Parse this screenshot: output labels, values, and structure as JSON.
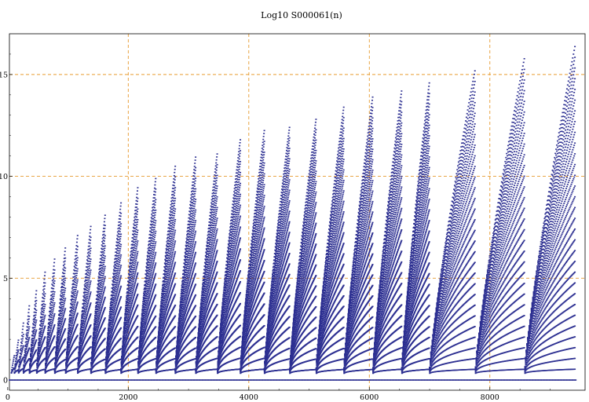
{
  "chart_data": {
    "type": "scatter",
    "title": "Log10 S000061(n)",
    "xlabel": "",
    "ylabel": "",
    "xlim": [
      0,
      9500
    ],
    "ylim": [
      0,
      16.5
    ],
    "xticks": [
      0,
      2000,
      4000,
      6000,
      8000
    ],
    "yticks": [
      0,
      5,
      10,
      15
    ],
    "grid": true,
    "colors": {
      "points": "#2c2f91",
      "grid": "#e69a2e",
      "axis": "#000000"
    },
    "series": [
      {
        "blocks": [
          {
            "n_start": 60,
            "n_end": 110,
            "peak": 1.2
          },
          {
            "n_start": 110,
            "n_end": 180,
            "peak": 2.0
          },
          {
            "n_start": 180,
            "n_end": 260,
            "peak": 2.8
          },
          {
            "n_start": 260,
            "n_end": 360,
            "peak": 3.7
          },
          {
            "n_start": 360,
            "n_end": 480,
            "peak": 4.5
          },
          {
            "n_start": 480,
            "n_end": 620,
            "peak": 5.3
          },
          {
            "n_start": 620,
            "n_end": 780,
            "peak": 6.0
          },
          {
            "n_start": 780,
            "n_end": 960,
            "peak": 6.6
          },
          {
            "n_start": 960,
            "n_end": 1160,
            "peak": 7.1
          },
          {
            "n_start": 1160,
            "n_end": 1380,
            "peak": 7.6
          },
          {
            "n_start": 1380,
            "n_end": 1620,
            "peak": 8.2
          },
          {
            "n_start": 1620,
            "n_end": 1880,
            "peak": 8.7
          },
          {
            "n_start": 1880,
            "n_end": 2160,
            "peak": 9.5
          },
          {
            "n_start": 2160,
            "n_end": 2460,
            "peak": 10.0
          },
          {
            "n_start": 2460,
            "n_end": 2780,
            "peak": 10.5
          },
          {
            "n_start": 2780,
            "n_end": 3120,
            "peak": 11.0
          },
          {
            "n_start": 3120,
            "n_end": 3480,
            "peak": 11.2
          },
          {
            "n_start": 3480,
            "n_end": 3860,
            "peak": 11.8
          },
          {
            "n_start": 3860,
            "n_end": 4260,
            "peak": 12.3
          },
          {
            "n_start": 4260,
            "n_end": 4680,
            "peak": 12.5
          },
          {
            "n_start": 4680,
            "n_end": 5120,
            "peak": 12.9
          },
          {
            "n_start": 5120,
            "n_end": 5580,
            "peak": 13.5
          },
          {
            "n_start": 5580,
            "n_end": 6060,
            "peak": 14.0
          },
          {
            "n_start": 6060,
            "n_end": 6540,
            "peak": 14.3
          },
          {
            "n_start": 6540,
            "n_end": 7000,
            "peak": 14.7
          },
          {
            "n_start": 7000,
            "n_end": 7760,
            "peak": 15.3
          },
          {
            "n_start": 7760,
            "n_end": 8580,
            "peak": 15.9
          },
          {
            "n_start": 8580,
            "n_end": 9420,
            "peak": 16.5
          }
        ],
        "baseline_value": 0
      }
    ]
  }
}
